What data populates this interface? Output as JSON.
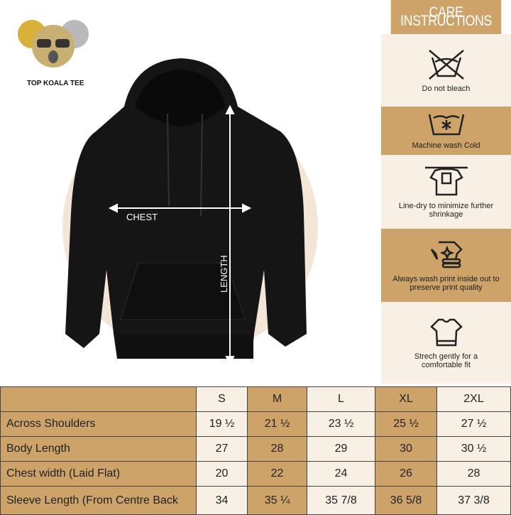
{
  "brand": {
    "name": "TOP KOALA TEE"
  },
  "diagram": {
    "chest_label": "CHEST",
    "length_label": "LENGTH",
    "garment": "black hoodie"
  },
  "care": {
    "title": "CARE INSTRUCTIONS",
    "items": [
      {
        "icon": "no-bleach-icon",
        "label": "Do not bleach"
      },
      {
        "icon": "machine-wash-cold-icon",
        "label": "Machine wash Cold"
      },
      {
        "icon": "line-dry-icon",
        "label": "Line-dry to minimize further shrinkage"
      },
      {
        "icon": "wash-inside-out-icon",
        "label": "Always wash print inside out to preserve print quality"
      },
      {
        "icon": "stretch-shirt-icon",
        "label": "Strech gently for a comfortable fit"
      }
    ]
  },
  "size_table": {
    "headers": [
      "",
      "S",
      "M",
      "L",
      "XL",
      "2XL"
    ],
    "rows": [
      [
        "Across Shoulders",
        "19 ½",
        "21 ½",
        "23 ½",
        "25 ½",
        "27 ½"
      ],
      [
        "Body Length",
        "27",
        "28",
        "29",
        "30",
        "30 ½"
      ],
      [
        "Chest width (Laid Flat)",
        "20",
        "22",
        "24",
        "26",
        "28"
      ],
      [
        "Sleeve Length (From Centre Back",
        "34",
        "35 ¼",
        "35 7/8",
        "36 5/8",
        "37 3/8"
      ]
    ]
  },
  "colors": {
    "tan": "#cda36a",
    "cream": "#f8efe5",
    "hoodie": "#151515",
    "logo_gold": "#d9b13a"
  }
}
